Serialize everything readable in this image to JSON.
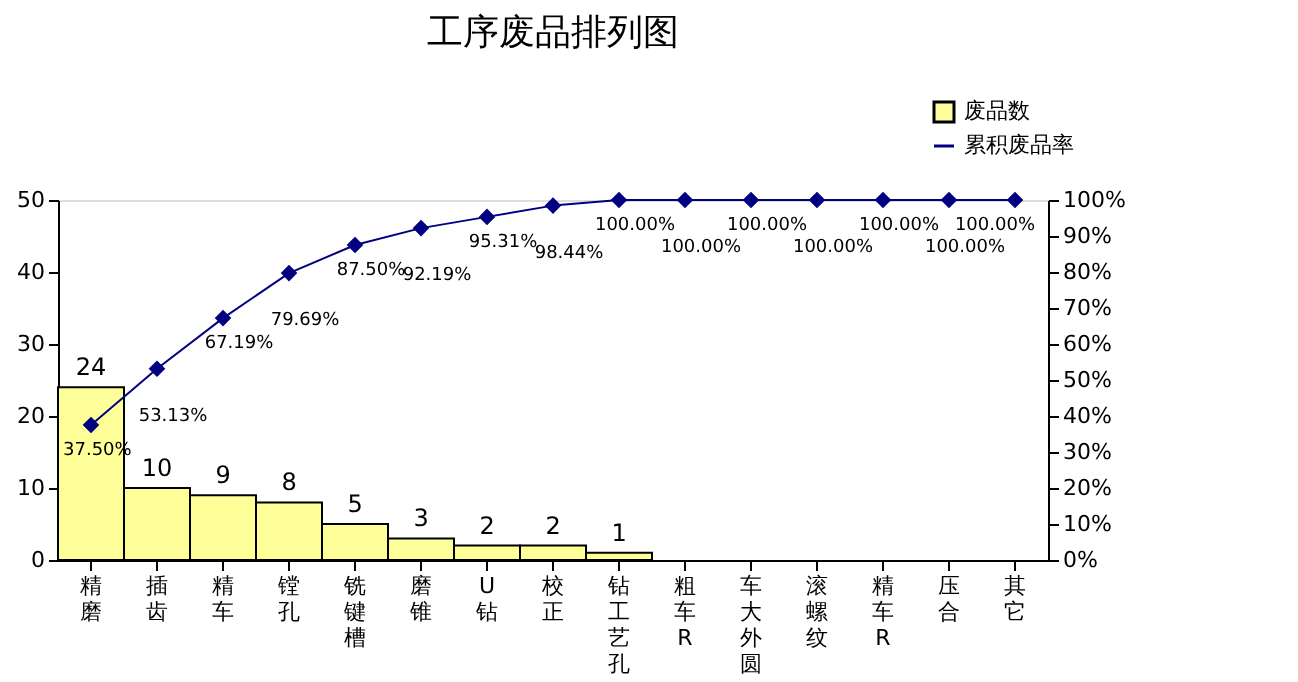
{
  "chart_data": {
    "type": "bar",
    "title": "工序废品排列图",
    "categories": [
      "精磨",
      "插齿",
      "精车",
      "镗孔",
      "铣键槽",
      "磨锥",
      "U钻",
      "校正",
      "钻工艺孔",
      "粗车R",
      "车大外圆",
      "滚螺纹",
      "精车R",
      "压合",
      "其它"
    ],
    "series": [
      {
        "name": "废品数",
        "color": "#ffff99",
        "values": [
          24,
          10,
          9,
          8,
          5,
          3,
          2,
          2,
          1,
          0,
          0,
          0,
          0,
          0,
          0
        ],
        "value_labels": [
          "24",
          "10",
          "9",
          "8",
          "5",
          "3",
          "2",
          "2",
          "1",
          null,
          null,
          null,
          null,
          null,
          null
        ]
      },
      {
        "name": "累积废品率",
        "type": "line",
        "axis": "y2",
        "color": "#000080",
        "marker": "diamond",
        "values": [
          37.5,
          53.13,
          67.19,
          79.69,
          87.5,
          92.19,
          95.31,
          98.44,
          100,
          100,
          100,
          100,
          100,
          100,
          100
        ],
        "value_labels": [
          "37.50%",
          "53.13%",
          "67.19%",
          "79.69%",
          "87.50%",
          "92.19%",
          "95.31%",
          "98.44%",
          "100.00%",
          "100.00%",
          "100.00%",
          "100.00%",
          "100.00%",
          "100.00%",
          "100.00%"
        ]
      }
    ],
    "ylim": [
      0,
      50
    ],
    "yticks": [
      0,
      10,
      20,
      30,
      40,
      50
    ],
    "y2lim": [
      0,
      100
    ],
    "y2ticks": [
      {
        "value": 0,
        "label": "0%"
      },
      {
        "value": 10,
        "label": "10%"
      },
      {
        "value": 20,
        "label": "20%"
      },
      {
        "value": 30,
        "label": "30%"
      },
      {
        "value": 40,
        "label": "40%"
      },
      {
        "value": 50,
        "label": "50%"
      },
      {
        "value": 60,
        "label": "60%"
      },
      {
        "value": 70,
        "label": "70%"
      },
      {
        "value": 80,
        "label": "80%"
      },
      {
        "value": 90,
        "label": "90%"
      },
      {
        "value": 100,
        "label": "100%"
      }
    ],
    "grid": false,
    "legend": "top right"
  }
}
